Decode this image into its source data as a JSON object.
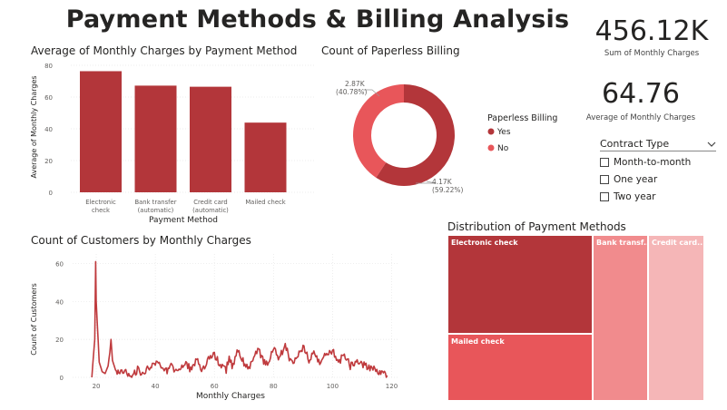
{
  "title": "Payment Methods & Billing Analysis",
  "kpis": {
    "sum_monthly": {
      "value": "456.12K",
      "label": "Sum of Monthly Charges"
    },
    "avg_monthly": {
      "value": "64.76",
      "label": "Average of Monthly Charges"
    }
  },
  "slicer": {
    "title": "Contract Type",
    "options": [
      "Month-to-month",
      "One year",
      "Two year"
    ]
  },
  "bar_chart": {
    "title": "Average of Monthly Charges by Payment Method",
    "ylabel": "Average of Monthly Charges",
    "xlabel": "Payment Method",
    "yticks": [
      "80",
      "60",
      "40",
      "20",
      "0"
    ],
    "cat_lines": [
      [
        "Electronic",
        "check"
      ],
      [
        "Bank transfer",
        "(automatic)"
      ],
      [
        "Credit card",
        "(automatic)"
      ],
      [
        "Mailed check",
        ""
      ]
    ]
  },
  "donut": {
    "title": "Count of Paperless Billing",
    "legend_title": "Paperless Billing",
    "legend": [
      "Yes",
      "No"
    ],
    "labels": {
      "no_value": "2.87K",
      "no_pct": "(40.78%)",
      "yes_value": "4.17K",
      "yes_pct": "(59.22%)"
    }
  },
  "line_chart": {
    "title": "Count of Customers by Monthly Charges",
    "ylabel": "Count of Customers",
    "xlabel": "Monthly Charges",
    "yticks": [
      "60",
      "40",
      "20",
      "0"
    ],
    "xticks": [
      "20",
      "40",
      "60",
      "80",
      "100",
      "120"
    ]
  },
  "treemap": {
    "title": "Distribution of Payment Methods",
    "labels": [
      "Electronic check",
      "Mailed check",
      "Bank transf...",
      "Credit card..."
    ]
  },
  "colors": {
    "dark_red": "#b3363a",
    "red": "#e8565a",
    "pink": "#f18b8d",
    "light_pink": "#f5b6b7",
    "line": "#bf3a3d"
  },
  "chart_data": [
    {
      "type": "bar",
      "title": "Average of Monthly Charges by Payment Method",
      "categories": [
        "Electronic check",
        "Bank transfer (automatic)",
        "Credit card (automatic)",
        "Mailed check"
      ],
      "values": [
        76.3,
        67.2,
        66.5,
        43.9
      ],
      "xlabel": "Payment Method",
      "ylabel": "Average of Monthly Charges",
      "ylim": [
        0,
        80
      ]
    },
    {
      "type": "pie",
      "title": "Count of Paperless Billing",
      "categories": [
        "Yes",
        "No"
      ],
      "values": [
        4170,
        2870
      ],
      "percentages": [
        59.22,
        40.78
      ]
    },
    {
      "type": "line",
      "title": "Count of Customers by Monthly Charges",
      "xlabel": "Monthly Charges",
      "ylabel": "Count of Customers",
      "xlim": [
        12,
        122
      ],
      "ylim": [
        0,
        65
      ],
      "x": [
        18.5,
        19.5,
        19.8,
        20.0,
        20.3,
        21,
        22,
        23,
        24,
        24.6,
        25.0,
        25.5,
        26.5,
        28,
        30,
        32,
        34,
        36,
        38,
        40,
        42,
        44,
        45,
        46,
        48,
        50,
        52,
        54,
        55,
        56,
        58,
        60,
        62,
        64,
        65,
        66,
        68,
        70,
        72,
        74,
        75,
        76,
        78,
        80,
        82,
        84,
        85,
        86,
        88,
        90,
        92,
        94,
        95,
        96,
        98,
        100,
        102,
        104,
        105,
        106,
        108,
        110,
        112,
        114,
        116,
        118.5
      ],
      "y": [
        0,
        20,
        61,
        40,
        30,
        8,
        3,
        2,
        6,
        13,
        20,
        9,
        4,
        2,
        3,
        1,
        4,
        2,
        5,
        7,
        6,
        3,
        8,
        5,
        3,
        8,
        4,
        10,
        6,
        3,
        9,
        12,
        6,
        4,
        11,
        6,
        14,
        8,
        5,
        12,
        16,
        10,
        6,
        15,
        10,
        17,
        12,
        8,
        11,
        16,
        9,
        14,
        10,
        7,
        13,
        14,
        8,
        12,
        10,
        6,
        9,
        7,
        5,
        4,
        3,
        1
      ]
    },
    {
      "type": "treemap",
      "title": "Distribution of Payment Methods",
      "categories": [
        "Electronic check",
        "Mailed check",
        "Bank transfer (automatic)",
        "Credit card (automatic)"
      ],
      "values": [
        2365,
        1612,
        1544,
        1522
      ]
    }
  ]
}
